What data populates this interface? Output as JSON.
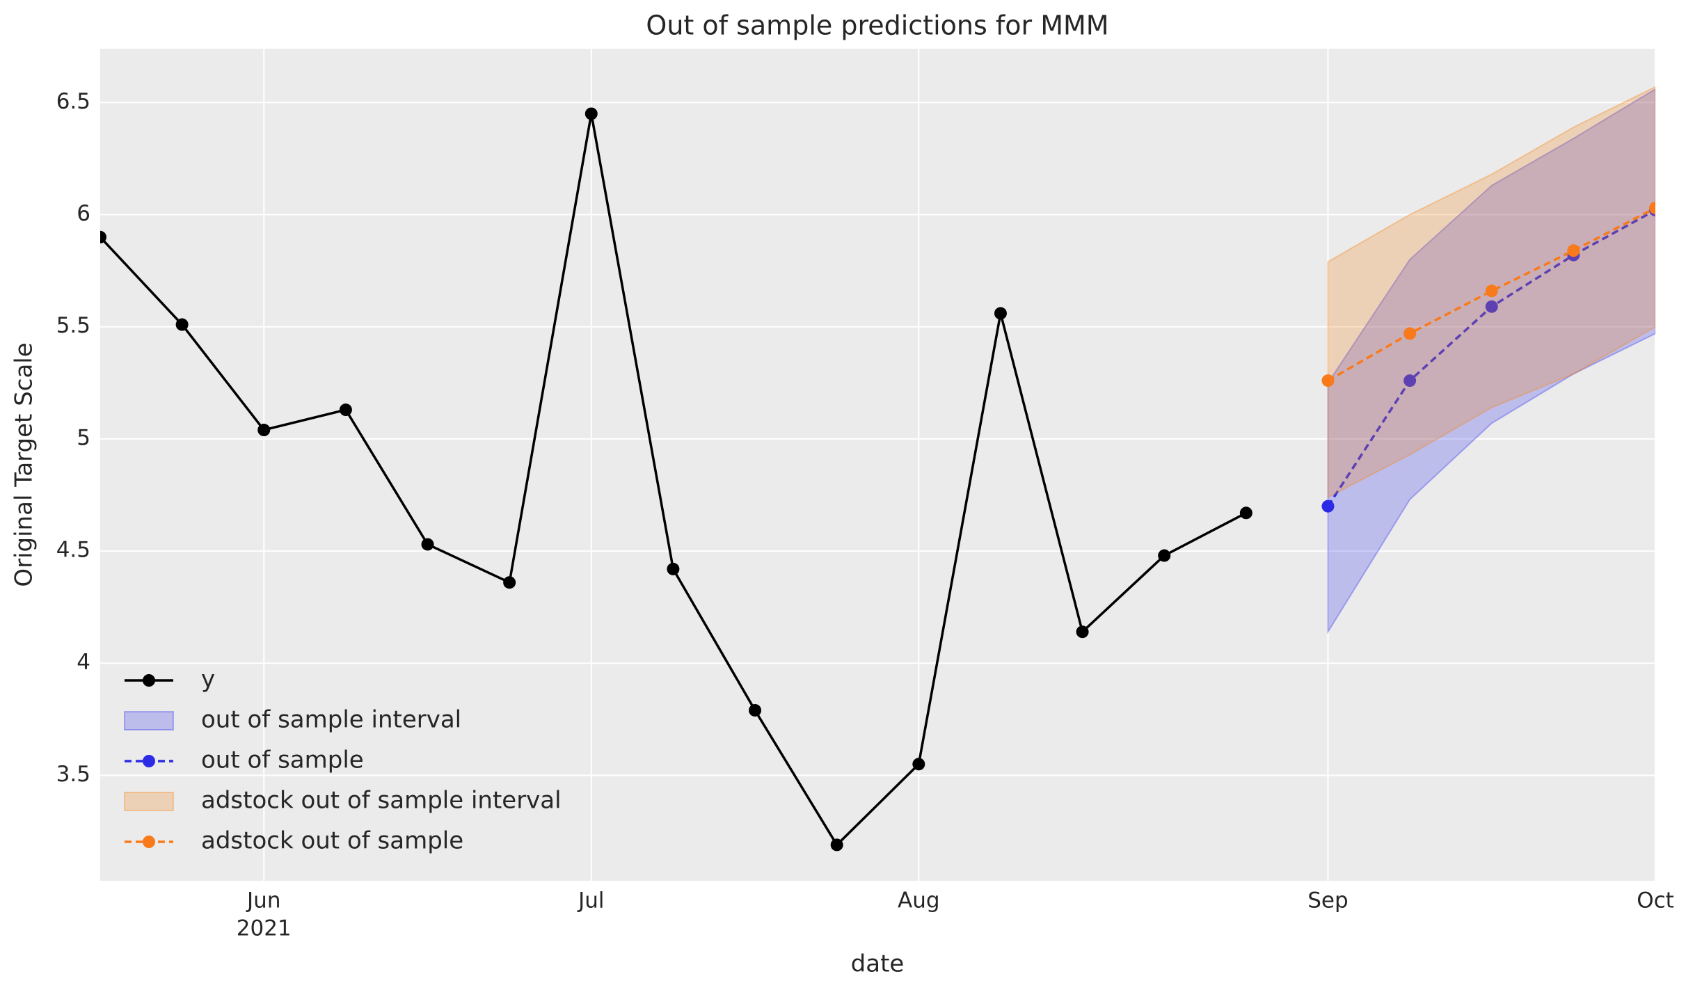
{
  "chart_data": {
    "type": "line",
    "title": "Out of sample predictions for MMM",
    "xlabel": "date",
    "ylabel": "Original Target Scale",
    "categories": [
      null,
      null,
      "Jun",
      null,
      null,
      null,
      "Jul",
      null,
      null,
      null,
      "Aug",
      null,
      null,
      null,
      null,
      "Sep",
      null,
      null,
      null,
      "Oct"
    ],
    "category_sublabels": [
      null,
      null,
      "2021",
      null,
      null,
      null,
      null,
      null,
      null,
      null,
      null,
      null,
      null,
      null,
      null,
      null,
      null,
      null,
      null,
      null
    ],
    "ylim": [
      3.03,
      6.74
    ],
    "yticks": [
      3.5,
      4.0,
      4.5,
      5.0,
      5.5,
      6.0,
      6.5
    ],
    "grid": true,
    "legend": "lower left",
    "series": [
      {
        "name": "y",
        "kind": "line",
        "color": "#000000",
        "dashed": false,
        "values": [
          5.9,
          5.51,
          5.04,
          5.13,
          4.53,
          4.36,
          6.45,
          4.42,
          3.79,
          3.19,
          3.55,
          5.56,
          4.14,
          4.48,
          4.67,
          null,
          null,
          null,
          null,
          null
        ]
      },
      {
        "name": "out of sample interval",
        "kind": "band",
        "color": "#3333ee",
        "alpha": 0.25,
        "lower": [
          null,
          null,
          null,
          null,
          null,
          null,
          null,
          null,
          null,
          null,
          null,
          null,
          null,
          null,
          null,
          4.14,
          4.73,
          5.07,
          5.29,
          5.47
        ],
        "upper": [
          null,
          null,
          null,
          null,
          null,
          null,
          null,
          null,
          null,
          null,
          null,
          null,
          null,
          null,
          null,
          5.25,
          5.8,
          6.13,
          6.34,
          6.56
        ]
      },
      {
        "name": "out of sample",
        "kind": "line",
        "color": "#2b2be6",
        "dashed": true,
        "values": [
          null,
          null,
          null,
          null,
          null,
          null,
          null,
          null,
          null,
          null,
          null,
          null,
          null,
          null,
          null,
          4.7,
          5.26,
          5.59,
          5.82,
          6.02
        ]
      },
      {
        "name": "adstock out of sample interval",
        "kind": "band",
        "color": "#f58518",
        "alpha": 0.25,
        "lower": [
          null,
          null,
          null,
          null,
          null,
          null,
          null,
          null,
          null,
          null,
          null,
          null,
          null,
          null,
          null,
          4.74,
          4.93,
          5.14,
          5.29,
          5.5
        ],
        "upper": [
          null,
          null,
          null,
          null,
          null,
          null,
          null,
          null,
          null,
          null,
          null,
          null,
          null,
          null,
          null,
          5.79,
          6.0,
          6.18,
          6.39,
          6.57
        ]
      },
      {
        "name": "adstock out of sample",
        "kind": "line",
        "color": "#f87a1a",
        "dashed": true,
        "values": [
          null,
          null,
          null,
          null,
          null,
          null,
          null,
          null,
          null,
          null,
          null,
          null,
          null,
          null,
          null,
          5.26,
          5.47,
          5.66,
          5.84,
          6.03
        ]
      }
    ]
  }
}
